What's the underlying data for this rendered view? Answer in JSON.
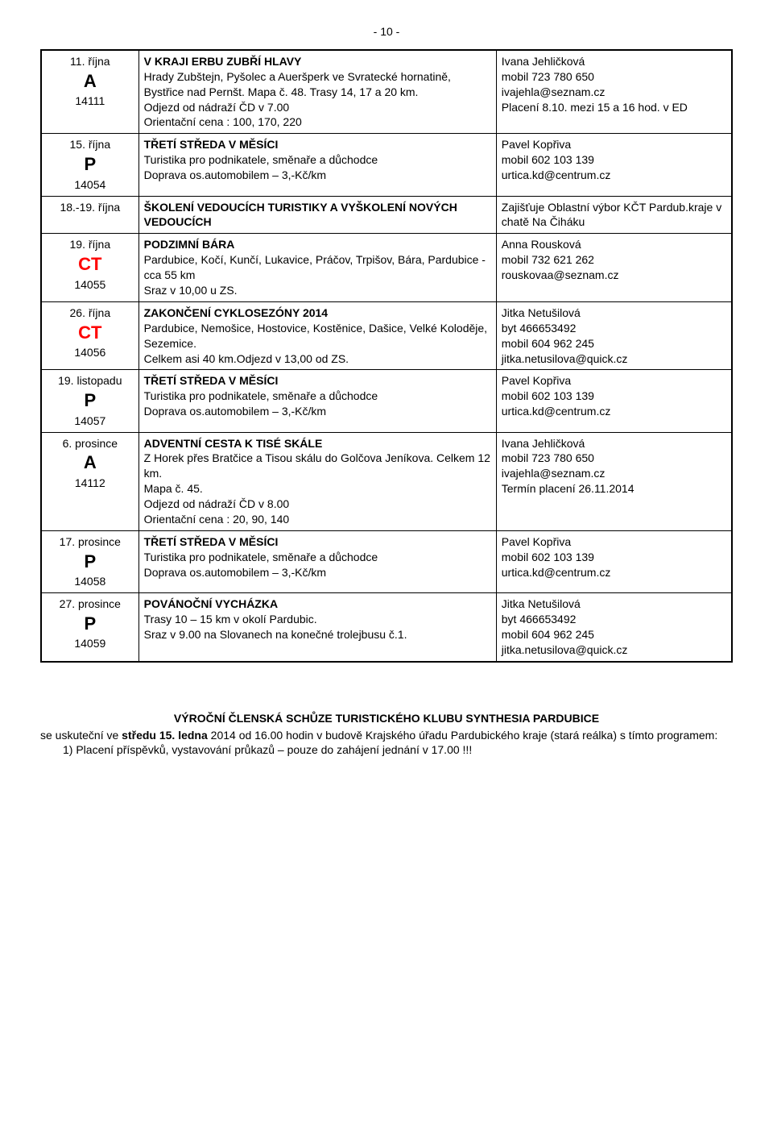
{
  "page_number": "- 10 -",
  "rows": [
    {
      "date_top": "11. října",
      "letter": "A",
      "letter_color": "#000000",
      "code": "14111",
      "desc_title": "V KRAJI ERBU ZUBŘÍ HLAVY",
      "desc_body": "Hrady Zubštejn, Pyšolec a Aueršperk ve Svratecké hornatině, Bystřice nad Pernšt. Mapa č. 48. Trasy 14, 17 a 20 km.\nOdjezd od nádraží ČD v 7.00\nOrientační cena : 100, 170, 220",
      "contact_title": "Ivana Jehličková",
      "contact_lines": "mobil 723 780 650\nivajehla@seznam.cz\nPlacení  8.10. mezi 15 a 16 hod. v ED"
    },
    {
      "date_top": "15. října",
      "letter": "P",
      "letter_color": "#000000",
      "code": "14054",
      "desc_title": "TŘETÍ STŘEDA V MĚSÍCI",
      "desc_body": "Turistika pro podnikatele, směnaře a důchodce\nDoprava os.automobilem – 3,-Kč/km",
      "contact_title": "Pavel Kopřiva",
      "contact_lines": "mobil 602 103 139\nurtica.kd@centrum.cz"
    },
    {
      "date_top": "18.-19. října",
      "letter": "",
      "letter_color": "#000000",
      "code": "",
      "desc_title": "ŠKOLENÍ VEDOUCÍCH TURISTIKY A VYŠKOLENÍ NOVÝCH VEDOUCÍCH",
      "desc_body": "",
      "contact_title": "",
      "contact_lines": "Zajišťuje Oblastní výbor KČT Pardub.kraje v chatě  Na Čiháku"
    },
    {
      "date_top": "19. října",
      "letter": "CT",
      "letter_color": "#ff0000",
      "code": "14055",
      "desc_title": "PODZIMNÍ BÁRA",
      "desc_body": "Pardubice, Kočí, Kunčí, Lukavice, Práčov, Trpišov, Bára, Pardubice - cca 55 km\nSraz v 10,00 u ZS.",
      "contact_title": "Anna Rousková",
      "contact_lines": "mobil 732 621 262\nrouskovaa@seznam.cz"
    },
    {
      "date_top": "26. října",
      "letter": "CT",
      "letter_color": "#ff0000",
      "code": "14056",
      "desc_title": "ZAKONČENÍ CYKLOSEZÓNY 2014",
      "desc_body": "Pardubice, Nemošice, Hostovice, Kostěnice, Dašice, Velké Koloděje, Sezemice.\nCelkem asi 40 km.Odjezd v 13,00 od ZS.",
      "contact_title": "Jitka Netušilová",
      "contact_lines": "byt 466653492\nmobil 604 962 245\njitka.netusilova@quick.cz"
    },
    {
      "date_top": "19. listopadu",
      "letter": "P",
      "letter_color": "#000000",
      "code": "14057",
      "desc_title": "TŘETÍ STŘEDA V MĚSÍCI",
      "desc_body": "Turistika pro podnikatele, směnaře a důchodce\nDoprava os.automobilem – 3,-Kč/km",
      "contact_title": "Pavel Kopřiva",
      "contact_lines": "mobil 602 103 139\nurtica.kd@centrum.cz"
    },
    {
      "date_top": "6. prosince",
      "letter": "A",
      "letter_color": "#000000",
      "code": "14112",
      "desc_title": "ADVENTNÍ CESTA K TISÉ SKÁLE",
      "desc_body": "Z Horek přes Bratčice a Tisou skálu do Golčova Jeníkova. Celkem 12 km.\nMapa č. 45.\nOdjezd od nádraží ČD v 8.00\nOrientační cena : 20, 90, 140",
      "contact_title": "Ivana Jehličková",
      "contact_lines": "mobil 723 780 650\nivajehla@seznam.cz\nTermín placení 26.11.2014"
    },
    {
      "date_top": "17. prosince",
      "letter": "P",
      "letter_color": "#000000",
      "code": "14058",
      "desc_title": "TŘETÍ STŘEDA V MĚSÍCI",
      "desc_body": "Turistika pro podnikatele, směnaře a důchodce\nDoprava os.automobilem – 3,-Kč/km",
      "contact_title": "Pavel Kopřiva",
      "contact_lines": "mobil 602 103 139\nurtica.kd@centrum.cz"
    },
    {
      "date_top": "27. prosince",
      "letter": "P",
      "letter_color": "#000000",
      "code": "14059",
      "desc_title": "POVÁNOČNÍ VYCHÁZKA",
      "desc_body": "Trasy 10 – 15 km v okolí Pardubic.\nSraz v 9.00 na Slovanech na konečné trolejbusu č.1.",
      "contact_title": "Jitka Netušilová",
      "contact_lines": "byt 466653492\nmobil 604 962 245\njitka.netusilova@quick.cz"
    }
  ],
  "footer": {
    "title": "VÝROČNÍ ČLENSKÁ SCHŮZE TURISTICKÉHO KLUBU SYNTHESIA PARDUBICE",
    "line1_prefix": "se uskuteční ve ",
    "line1_bold": "středu 15. ledna",
    "line1_suffix": " 2014 od 16.00 hodin v budově Krajského úřadu Pardubického kraje (stará reálka) s tímto programem:",
    "list_item_1": "1)   Placení příspěvků, vystavování průkazů – pouze do zahájení jednání v 17.00 !!!"
  }
}
